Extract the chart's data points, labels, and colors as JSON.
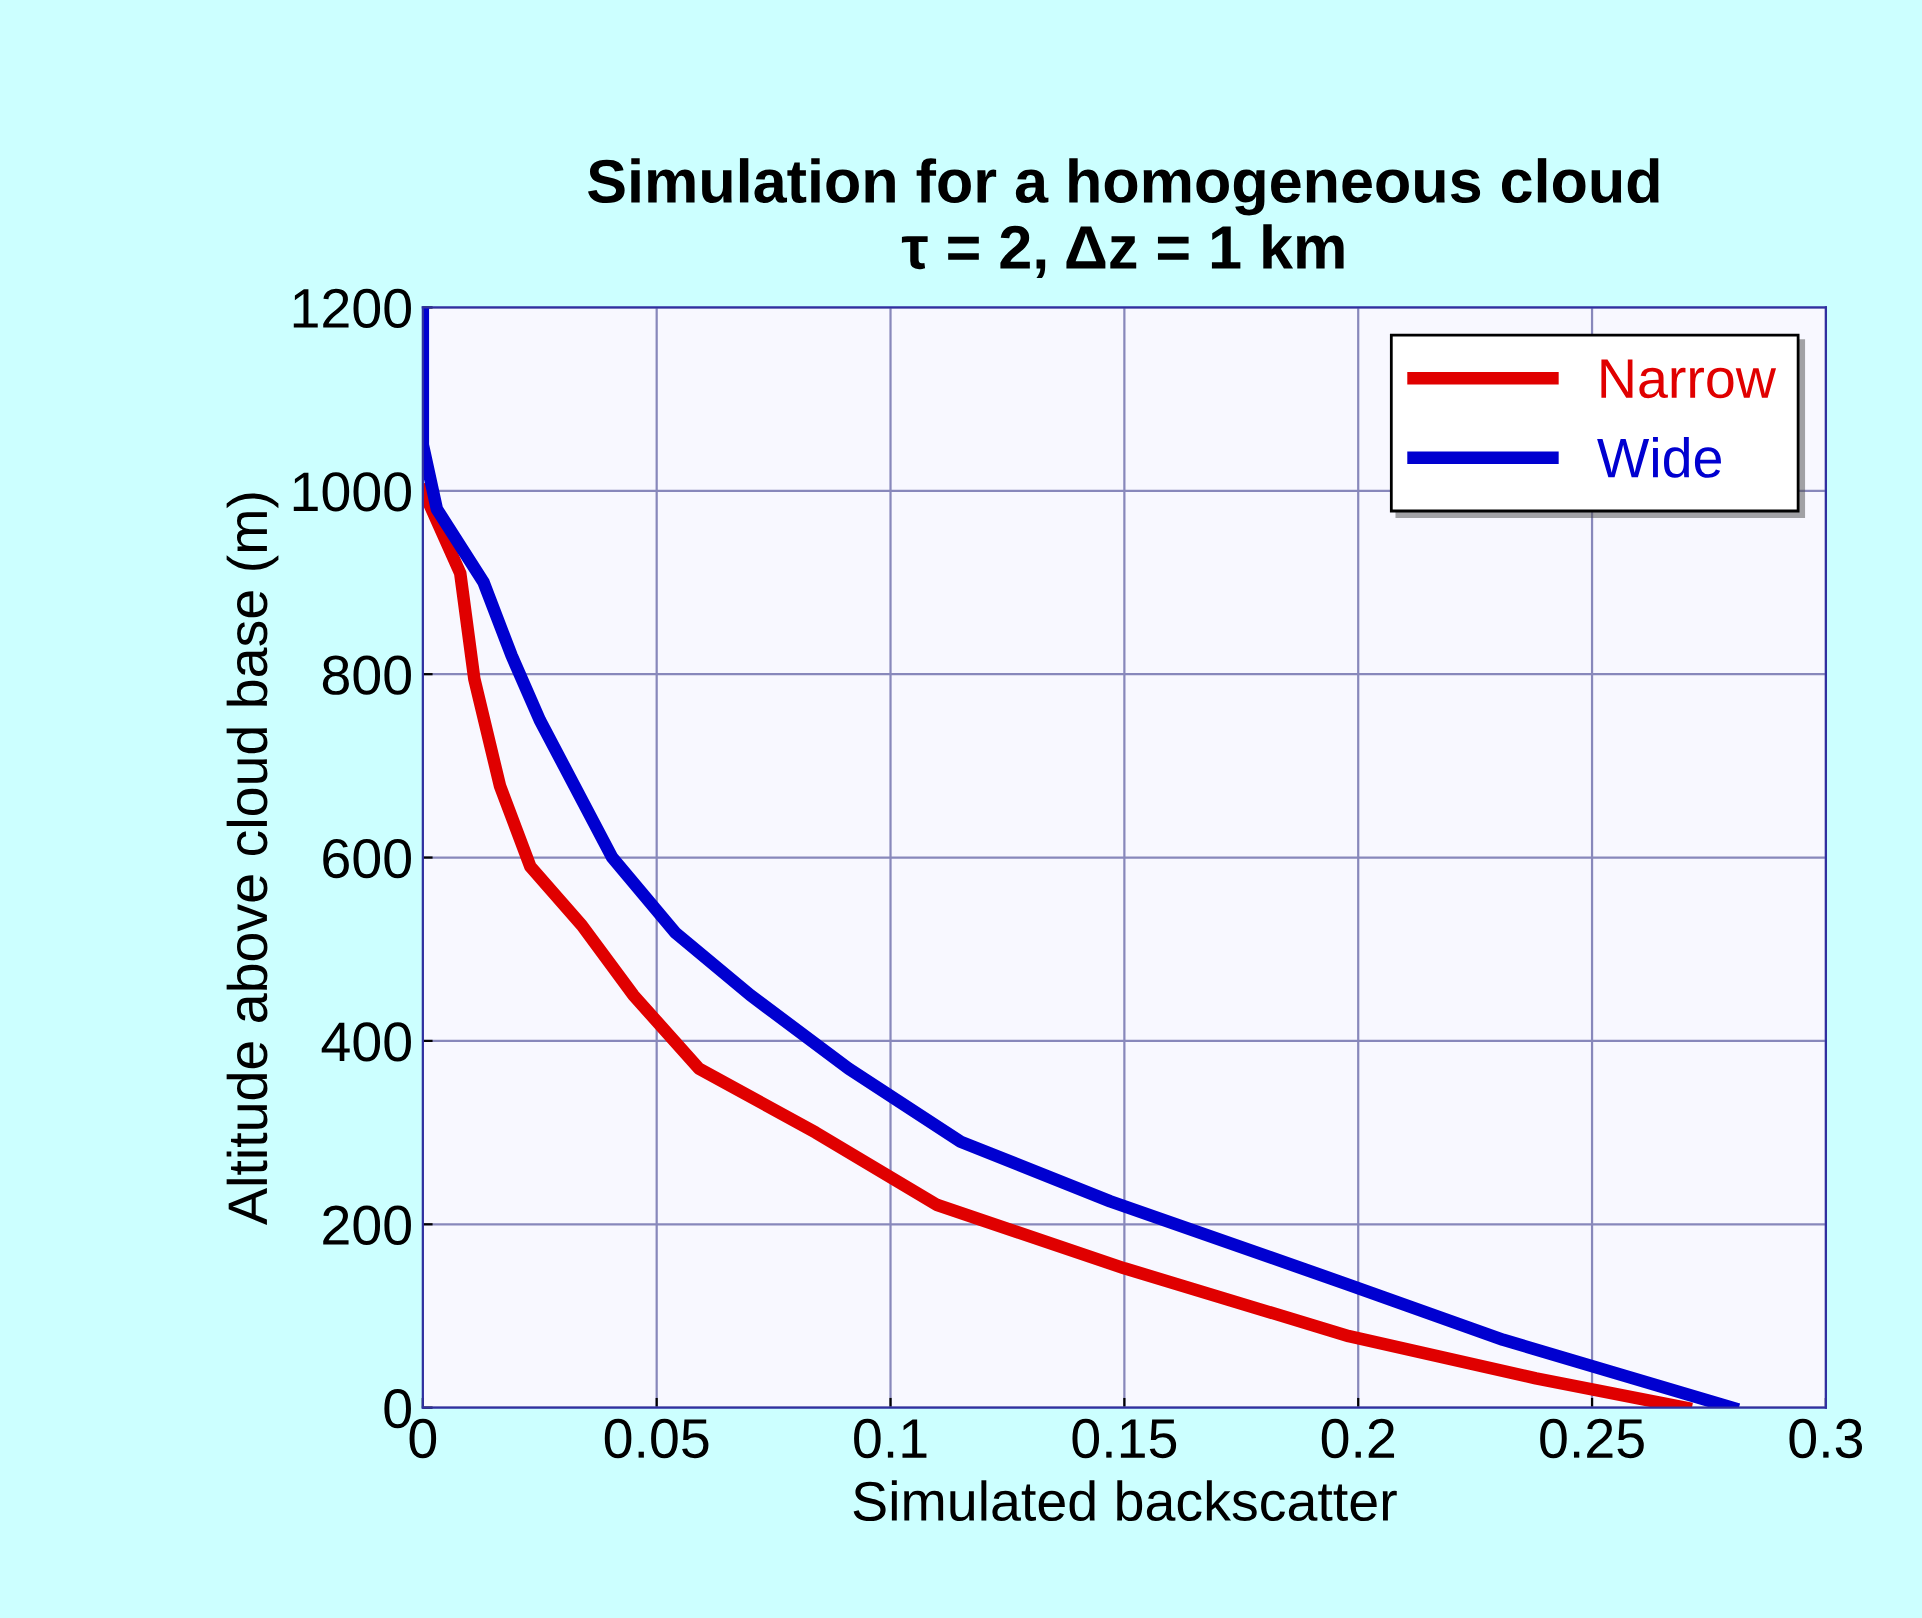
{
  "chart_data": {
    "type": "line",
    "title": "Simulation for a homogeneous cloud\nτ = 2, Δz = 1 km",
    "xlabel": "Simulated backscatter",
    "ylabel": "Altitude above cloud base (m)",
    "series": [
      {
        "name": "Narrow",
        "color": "#e00000",
        "x": [
          0,
          0.001,
          0.008,
          0.011,
          0.0165,
          0.023,
          0.034,
          0.045,
          0.059,
          0.084,
          0.11,
          0.15,
          0.198,
          0.238,
          0.27
        ],
        "values": [
          1000,
          990,
          910,
          795,
          678,
          590,
          526,
          450,
          370,
          300,
          221,
          152,
          78,
          32,
          0
        ]
      },
      {
        "name": "Wide",
        "color": "#0000d0",
        "x": [
          0,
          0,
          0.003,
          0.013,
          0.019,
          0.025,
          0.0405,
          0.054,
          0.07,
          0.091,
          0.115,
          0.147,
          0.198,
          0.231,
          0.28
        ],
        "values": [
          1200,
          1050,
          980,
          900,
          820,
          750,
          600,
          518,
          450,
          370,
          290,
          225,
          134,
          74,
          0
        ]
      }
    ],
    "xlim": [
      0,
      0.3
    ],
    "ylim": [
      0,
      1200
    ],
    "xticks": [
      0,
      0.05,
      0.1,
      0.15,
      0.2,
      0.25,
      0.3
    ],
    "yticks": [
      0,
      200,
      400,
      600,
      800,
      1000,
      1200
    ],
    "grid": true,
    "legend": "top right",
    "line_style": "solid"
  }
}
